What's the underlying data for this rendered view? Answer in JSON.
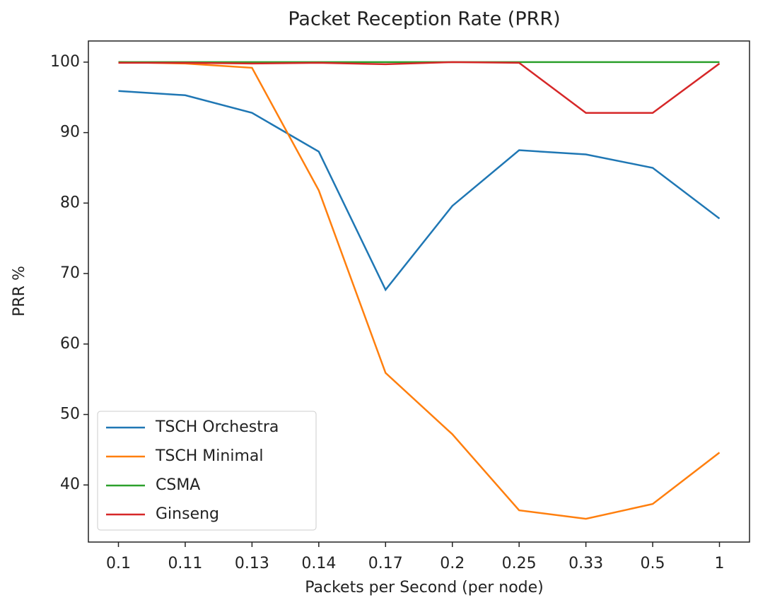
{
  "chart_data": {
    "type": "line",
    "title": "Packet Reception Rate (PRR)",
    "x_label": "Packets per Second (per node)",
    "y_label": "PRR %",
    "categories": [
      "0.1",
      "0.11",
      "0.13",
      "0.14",
      "0.17",
      "0.2",
      "0.25",
      "0.33",
      "0.5",
      "1"
    ],
    "series": [
      {
        "name": "TSCH Orchestra",
        "color": "#1f77b4",
        "values": [
          95.9,
          95.3,
          92.8,
          87.3,
          67.7,
          79.6,
          87.5,
          86.9,
          85.0,
          77.8
        ]
      },
      {
        "name": "TSCH Minimal",
        "color": "#ff7f0e",
        "values": [
          100,
          99.8,
          99.2,
          81.8,
          55.9,
          47.2,
          36.4,
          35.2,
          37.3,
          44.6
        ]
      },
      {
        "name": "CSMA",
        "color": "#2ca02c",
        "values": [
          100,
          100,
          100,
          100,
          100,
          100,
          100,
          100,
          100,
          100
        ]
      },
      {
        "name": "Ginseng",
        "color": "#d62728",
        "values": [
          99.9,
          99.9,
          99.8,
          99.9,
          99.7,
          100,
          99.9,
          92.8,
          92.8,
          99.8
        ]
      }
    ],
    "ylim": [
      31.9,
      103.0
    ],
    "yticks": [
      40,
      50,
      60,
      70,
      80,
      90,
      100
    ],
    "legend": "lower left"
  }
}
